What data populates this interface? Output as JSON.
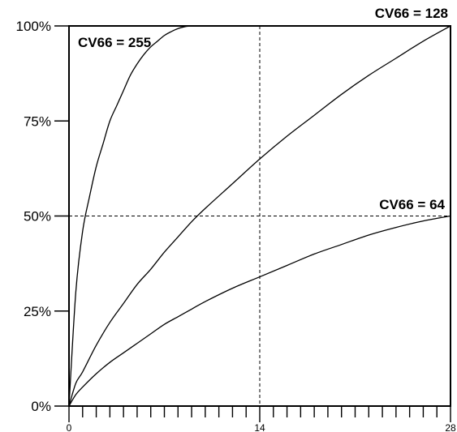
{
  "chart_data": {
    "type": "line",
    "title": "",
    "xlabel": "",
    "ylabel": "",
    "xlim": [
      0,
      28
    ],
    "ylim": [
      0,
      100
    ],
    "x_ticks": [
      0,
      14,
      28
    ],
    "x_minor_tick_step": 1,
    "y_ticks": [
      {
        "value": 0,
        "label": "0%"
      },
      {
        "value": 25,
        "label": "25%"
      },
      {
        "value": 50,
        "label": "50%"
      },
      {
        "value": 75,
        "label": "75%"
      },
      {
        "value": 100,
        "label": "100%"
      }
    ],
    "reference_lines": [
      {
        "axis": "x",
        "value": 14,
        "style": "dashed"
      },
      {
        "axis": "y",
        "value": 50,
        "style": "dashed"
      }
    ],
    "line_color": "#000000",
    "series": [
      {
        "label": "CV66 = 255",
        "x": [
          0,
          0.5,
          1,
          1.5,
          2,
          2.5,
          3,
          3.5,
          4,
          4.5,
          5,
          5.5,
          6,
          6.5,
          7,
          7.5,
          8,
          8.5,
          9
        ],
        "y": [
          0,
          30,
          46,
          55,
          63,
          69,
          75,
          79,
          83,
          87,
          90,
          92.5,
          94.5,
          96,
          97.5,
          98.5,
          99.3,
          99.8,
          100
        ]
      },
      {
        "label": "CV66 = 128",
        "x": [
          0,
          0.5,
          1,
          2,
          3,
          4,
          5,
          6,
          7,
          8,
          9,
          10,
          12,
          14,
          16,
          18,
          20,
          22,
          24,
          26,
          28
        ],
        "y": [
          0,
          6,
          9,
          16,
          22,
          27,
          32,
          36,
          40.5,
          44.5,
          48.5,
          52,
          58.5,
          65,
          71,
          76.5,
          82,
          87,
          91.5,
          96,
          100
        ]
      },
      {
        "label": "CV66 = 64",
        "x": [
          0,
          0.5,
          1,
          2,
          3,
          4,
          5,
          6,
          7,
          8,
          9,
          10,
          12,
          14,
          16,
          18,
          20,
          22,
          24,
          26,
          28
        ],
        "y": [
          0,
          3,
          5,
          8.5,
          11.5,
          14,
          16.5,
          19,
          21.5,
          23.5,
          25.5,
          27.5,
          31,
          34,
          37,
          40,
          42.5,
          45,
          47,
          48.7,
          50
        ]
      }
    ],
    "annotations": [
      {
        "text": "CV66 = 255"
      },
      {
        "text": "CV66 = 128"
      },
      {
        "text": "CV66 = 64"
      }
    ]
  }
}
